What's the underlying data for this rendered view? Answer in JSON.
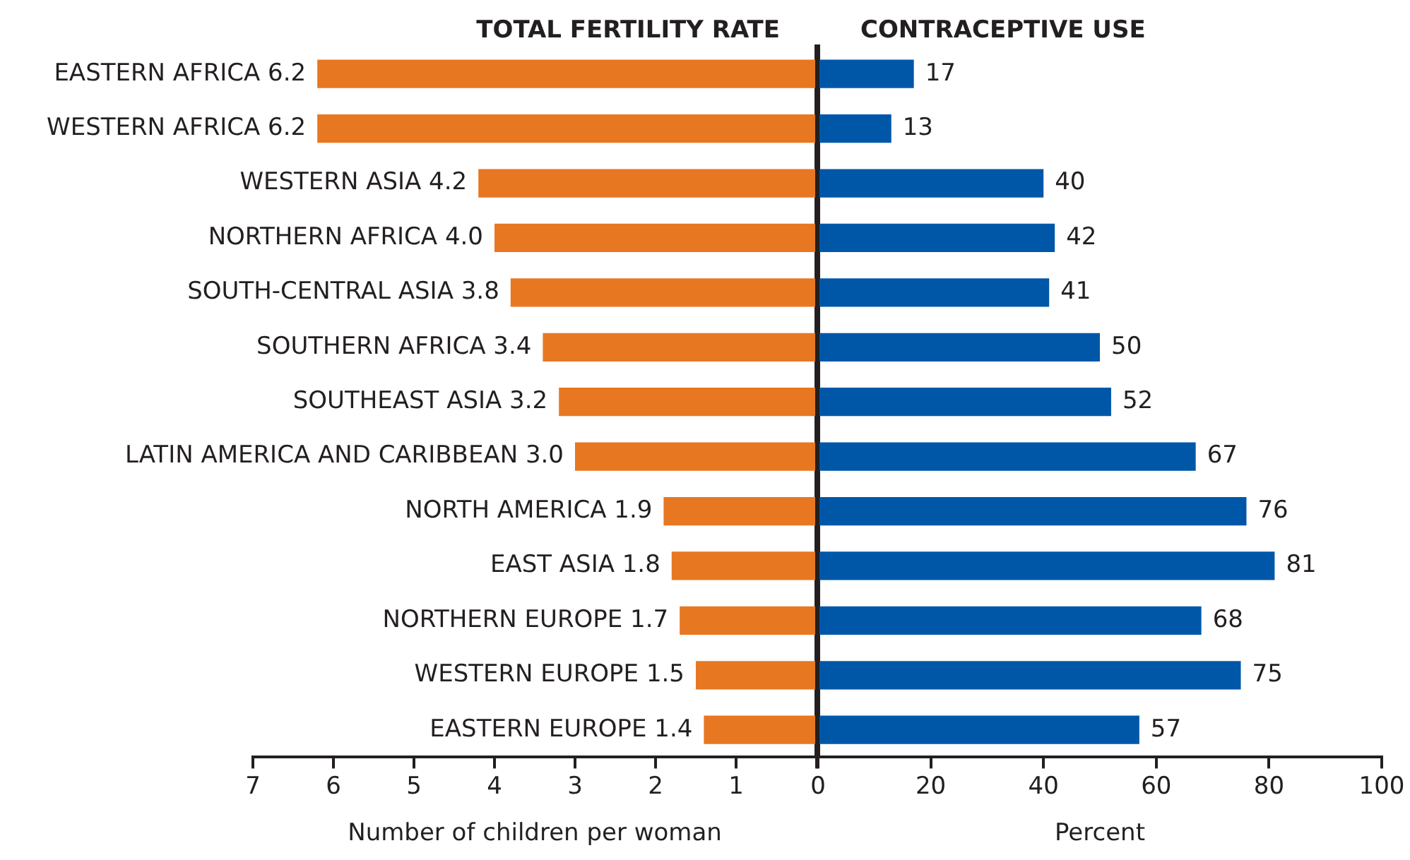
{
  "chart_data": [
    {
      "type": "bar",
      "orientation": "horizontal",
      "title": "TOTAL FERTILITY RATE",
      "xlabel": "Number of children per woman",
      "categories": [
        "EASTERN AFRICA",
        "WESTERN AFRICA",
        "WESTERN ASIA",
        "NORTHERN AFRICA",
        "SOUTH-CENTRAL ASIA",
        "SOUTHERN AFRICA",
        "SOUTHEAST ASIA",
        "LATIN AMERICA AND CARIBBEAN",
        "NORTH AMERICA",
        "EAST ASIA",
        "NORTHERN EUROPE",
        "WESTERN EUROPE",
        "EASTERN EUROPE"
      ],
      "values": [
        6.2,
        6.2,
        4.2,
        4.0,
        3.8,
        3.4,
        3.2,
        3.0,
        1.9,
        1.8,
        1.7,
        1.5,
        1.4
      ],
      "value_labels": [
        "6.2",
        "6.2",
        "4.2",
        "4.0",
        "3.8",
        "3.4",
        "3.2",
        "3.0",
        "1.9",
        "1.8",
        "1.7",
        "1.5",
        "1.4"
      ],
      "color": "#e87722",
      "xlim": [
        7,
        0
      ],
      "xticks": [
        7,
        6,
        5,
        4,
        3,
        2,
        1,
        {
          "value": 0,
          "label": null
        }
      ],
      "tick_labels": "x"
    },
    {
      "type": "bar",
      "orientation": "horizontal",
      "title": "CONTRACEPTIVE USE",
      "xlabel": "Percent",
      "categories": [
        null,
        null,
        null,
        null,
        null,
        null,
        null,
        null,
        null,
        null,
        null,
        null,
        null
      ],
      "values": [
        17,
        13,
        40,
        42,
        41,
        50,
        52,
        67,
        76,
        81,
        68,
        75,
        57
      ],
      "data_labels": true,
      "color": "#0057a8",
      "xlim": [
        0,
        100
      ],
      "xticks": [
        0,
        20,
        40,
        60,
        80,
        100
      ],
      "tick_labels": "x"
    }
  ]
}
